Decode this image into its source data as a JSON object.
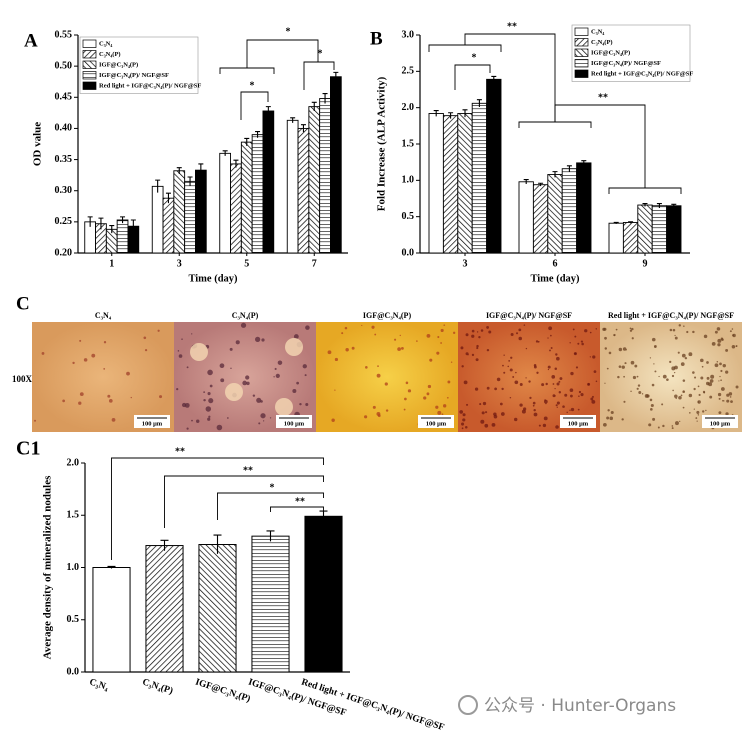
{
  "panel_labels": {
    "a": "A",
    "b": "B",
    "c": "C",
    "c1": "C1"
  },
  "panel_c": {
    "magnification": "100X",
    "scale_bar": "100 μm"
  },
  "watermark": "公众号 · Hunter-Organs",
  "chart_data": [
    {
      "type": "bar",
      "x_label": "Time (day)",
      "y_label": "OD value",
      "legend": "upper left",
      "categories": [
        "1",
        "3",
        "5",
        "7"
      ],
      "ylim": [
        0.2,
        0.55
      ],
      "yticks": [
        {
          "value": 0.2,
          "label": "0.20"
        },
        0.25,
        {
          "value": 0.3,
          "label": "0.30"
        },
        0.35,
        {
          "value": 0.4,
          "label": "0.40"
        },
        0.45,
        {
          "value": 0.5,
          "label": "0.50"
        },
        0.55
      ],
      "series": [
        {
          "name": "C₃N₄",
          "color": "#ffffff",
          "hatch": "none",
          "values": [
            0.25,
            0.307,
            0.36,
            0.413
          ],
          "errors": [
            0.008,
            0.01,
            0.004,
            0.004
          ]
        },
        {
          "name": "C₃N₄(P)",
          "color": "#ffffff",
          "hatch": "right",
          "values": [
            0.247,
            0.288,
            0.343,
            0.4
          ],
          "errors": [
            0.009,
            0.008,
            0.006,
            0.006
          ]
        },
        {
          "name": "IGF@C₃N₄(P)",
          "color": "#ffffff",
          "hatch": "left",
          "values": [
            0.238,
            0.332,
            0.378,
            0.435
          ],
          "errors": [
            0.006,
            0.005,
            0.006,
            0.007
          ]
        },
        {
          "name": "IGF@C₃N₄(P)/ NGF@SF",
          "color": "#ffffff",
          "hatch": "horizontal",
          "values": [
            0.253,
            0.315,
            0.39,
            0.448
          ],
          "errors": [
            0.005,
            0.007,
            0.005,
            0.008
          ]
        },
        {
          "name": "Red light + IGF@C₃N₄(P)/ NGF@SF",
          "color": "#000000",
          "hatch": "none",
          "values": [
            0.243,
            0.333,
            0.428,
            0.483
          ],
          "errors": [
            0.01,
            0.01,
            0.007,
            0.007
          ]
        }
      ],
      "annotations": [
        "*",
        "*",
        "*"
      ]
    },
    {
      "type": "bar",
      "x_label": "Time (day)",
      "y_label": "Fold Increase (ALP Activity)",
      "legend": "upper right",
      "categories": [
        "3",
        "6",
        "9"
      ],
      "ylim": [
        0,
        3
      ],
      "yticks": [
        {
          "value": 0,
          "label": "0.0"
        },
        0.5,
        {
          "value": 1,
          "label": "1.0"
        },
        1.5,
        {
          "value": 2,
          "label": "2.0"
        },
        2.5,
        {
          "value": 3,
          "label": "3.0"
        }
      ],
      "series": [
        {
          "name": "C₃N₄",
          "color": "#ffffff",
          "hatch": "none",
          "values": [
            1.92,
            0.98,
            0.41
          ],
          "errors": [
            0.04,
            0.03,
            0.01
          ]
        },
        {
          "name": "C₃N₄(P)",
          "color": "#ffffff",
          "hatch": "right",
          "values": [
            1.89,
            0.94,
            0.42
          ],
          "errors": [
            0.04,
            0.02,
            0.01
          ]
        },
        {
          "name": "IGF@C₃N₄(P)",
          "color": "#ffffff",
          "hatch": "left",
          "values": [
            1.92,
            1.08,
            0.66
          ],
          "errors": [
            0.05,
            0.04,
            0.02
          ]
        },
        {
          "name": "IGF@C₃N₄(P)/ NGF@SF",
          "color": "#ffffff",
          "hatch": "horizontal",
          "values": [
            2.06,
            1.16,
            0.65
          ],
          "errors": [
            0.05,
            0.04,
            0.03
          ]
        },
        {
          "name": "Red light + IGF@C₃N₄(P)/ NGF@SF",
          "color": "#000000",
          "hatch": "none",
          "values": [
            2.39,
            1.24,
            0.65
          ],
          "errors": [
            0.04,
            0.03,
            0.02
          ]
        }
      ],
      "annotations": [
        "**",
        "*",
        "**"
      ]
    },
    {
      "type": "bar",
      "y_label": "Average density of mineralized nodules",
      "categories": [
        "C₃N₄",
        "C₃N₄(P)",
        "IGF@C₃N₄(P)",
        "IGF@C₃N₄(P)/ NGF@SF",
        "Red light + IGF@C₃N₄(P)/ NGF@SF"
      ],
      "values": [
        1.0,
        1.21,
        1.22,
        1.3,
        1.49
      ],
      "errors": [
        0.01,
        0.05,
        0.09,
        0.05,
        0.05
      ],
      "colors": [
        "#ffffff",
        "#ffffff",
        "#ffffff",
        "#ffffff",
        "#000000"
      ],
      "hatches": [
        "none",
        "right",
        "left",
        "horizontal",
        "none"
      ],
      "ylim": [
        0,
        2
      ],
      "yticks": [
        {
          "value": 0,
          "label": "0.0"
        },
        0.5,
        {
          "value": 1,
          "label": "1.0"
        },
        1.5,
        {
          "value": 2,
          "label": "2.0"
        }
      ],
      "annotations": [
        "**",
        "**",
        "*",
        "**"
      ]
    }
  ]
}
